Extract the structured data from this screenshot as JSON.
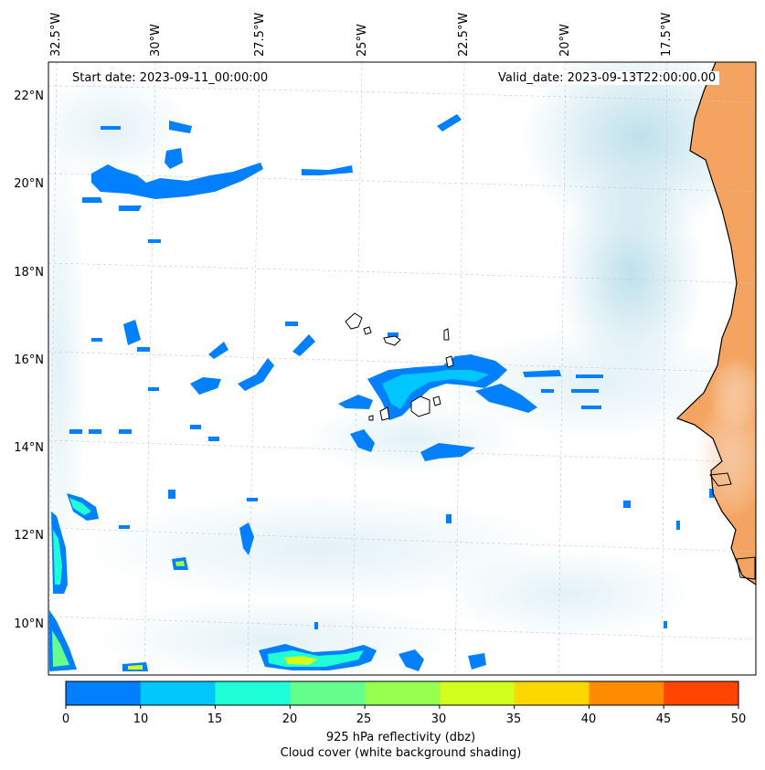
{
  "map": {
    "start_date_text": "Start date: 2023-09-11_00:00:00",
    "valid_date_text": "Valid_date: 2023-09-13T22:00:00.00",
    "lon_labels": [
      "32.5°W",
      "30°W",
      "27.5°W",
      "25°W",
      "22.5°W",
      "20°W",
      "17.5°W"
    ],
    "lat_labels": [
      "22°N",
      "20°N",
      "18°N",
      "16°N",
      "14°N",
      "12°N",
      "10°N"
    ],
    "land_color": "#f4a460",
    "cloud_color": "#add8e6",
    "coastline_color": "#000000"
  },
  "colorbar": {
    "ticks": [
      "0",
      "10",
      "15",
      "20",
      "25",
      "30",
      "35",
      "40",
      "45",
      "50"
    ],
    "colors": [
      "#0080ff",
      "#00c8ff",
      "#1effd8",
      "#64ff8c",
      "#96ff50",
      "#d2ff1e",
      "#ffd700",
      "#ff8c00",
      "#ff4500"
    ],
    "label_line1": "925 hPa reflectivity (dbz)",
    "label_line2": "Cloud cover (white background shading)"
  }
}
